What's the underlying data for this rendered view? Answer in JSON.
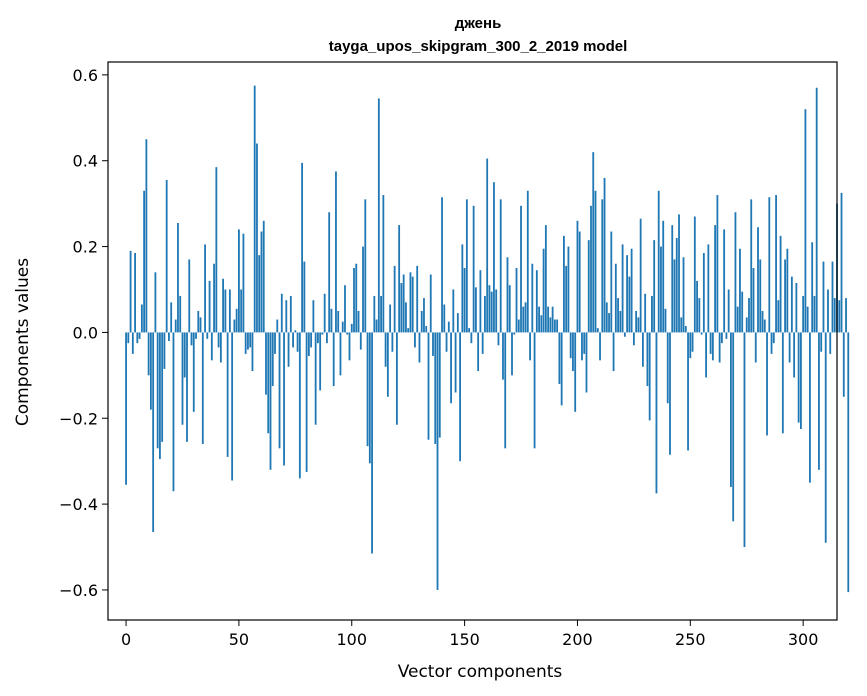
{
  "chart_data": {
    "type": "bar",
    "title_line1": "джень",
    "title_line2": "tayga_upos_skipgram_300_2_2019 model",
    "xlabel": "Vector components",
    "ylabel": "Components values",
    "xlim": [
      -8,
      315
    ],
    "ylim": [
      -0.67,
      0.63
    ],
    "xticks": [
      0,
      50,
      100,
      150,
      200,
      250,
      300
    ],
    "yticks": [
      0.6,
      0.4,
      0.2,
      0.0,
      -0.2,
      -0.4,
      -0.6
    ],
    "xtick_labels": [
      "0",
      "50",
      "100",
      "150",
      "200",
      "250",
      "300"
    ],
    "ytick_labels": [
      "0.6",
      "0.4",
      "0.2",
      "0.0",
      "−0.2",
      "−0.4",
      "−0.6"
    ],
    "bar_color": "#1f77b4",
    "values": [
      -0.355,
      -0.025,
      0.19,
      -0.05,
      0.185,
      -0.025,
      -0.015,
      0.065,
      0.33,
      0.45,
      -0.1,
      -0.18,
      -0.465,
      0.14,
      -0.27,
      -0.295,
      -0.255,
      -0.085,
      0.355,
      -0.02,
      0.07,
      -0.37,
      0.03,
      0.255,
      0.085,
      -0.215,
      -0.105,
      -0.255,
      0.17,
      -0.03,
      -0.185,
      -0.015,
      0.05,
      0.035,
      -0.26,
      0.205,
      -0.015,
      0.12,
      -0.065,
      0.16,
      0.385,
      -0.035,
      -0.07,
      0.125,
      0.1,
      -0.29,
      0.1,
      -0.345,
      0.03,
      0.055,
      0.24,
      0.1,
      0.23,
      -0.05,
      -0.04,
      -0.035,
      -0.09,
      0.575,
      0.44,
      0.18,
      0.235,
      0.26,
      -0.145,
      -0.235,
      -0.32,
      -0.125,
      -0.05,
      0.03,
      -0.27,
      0.09,
      -0.31,
      0.075,
      -0.08,
      0.085,
      -0.035,
      0.005,
      -0.045,
      -0.34,
      0.395,
      0.165,
      -0.325,
      -0.055,
      -0.035,
      0.075,
      -0.215,
      -0.025,
      -0.135,
      -0.005,
      0.09,
      -0.025,
      0.28,
      0.055,
      -0.125,
      0.375,
      0.05,
      -0.1,
      0.025,
      0.11,
      -0.005,
      -0.065,
      0.02,
      0.15,
      0.16,
      0.05,
      -0.04,
      0.2,
      0.31,
      -0.265,
      -0.305,
      -0.515,
      0.085,
      0.03,
      0.545,
      0.085,
      0.32,
      -0.08,
      -0.15,
      0.065,
      -0.045,
      0.155,
      -0.215,
      0.25,
      0.115,
      0.135,
      0.07,
      0.01,
      0.14,
      0.13,
      -0.035,
      0.155,
      -0.07,
      0.05,
      0.08,
      0.015,
      -0.25,
      0.135,
      -0.055,
      -0.26,
      -0.6,
      -0.245,
      0.315,
      0.065,
      -0.045,
      0.025,
      -0.165,
      0.1,
      -0.14,
      0.045,
      -0.3,
      0.205,
      0.15,
      0.31,
      0.01,
      -0.025,
      0.295,
      0.105,
      -0.09,
      0.145,
      -0.05,
      0.085,
      0.405,
      0.11,
      0.095,
      0.35,
      0.1,
      -0.03,
      0.31,
      -0.11,
      -0.27,
      0.175,
      0.11,
      -0.1,
      -0.005,
      0.15,
      0.03,
      0.295,
      0.06,
      0.07,
      0.33,
      -0.065,
      0.16,
      -0.27,
      0.145,
      0.06,
      0.04,
      0.195,
      0.25,
      0.06,
      0.035,
      0.06,
      0.03,
      0.03,
      -0.12,
      -0.17,
      0.225,
      0.155,
      0.2,
      -0.06,
      -0.09,
      -0.185,
      0.26,
      0.235,
      -0.065,
      -0.05,
      -0.14,
      0.215,
      0.295,
      0.42,
      0.33,
      0.01,
      -0.065,
      0.31,
      0.36,
      0.07,
      0.045,
      0.235,
      -0.09,
      0.16,
      0.08,
      0.05,
      0.205,
      -0.01,
      0.18,
      0.13,
      0.195,
      -0.03,
      0.05,
      0.035,
      0.265,
      -0.08,
      0.09,
      -0.125,
      -0.205,
      0.085,
      0.215,
      -0.375,
      0.33,
      0.2,
      0.26,
      0.055,
      -0.165,
      -0.285,
      0.25,
      0.17,
      0.22,
      0.275,
      0.035,
      0.175,
      0.015,
      -0.275,
      -0.06,
      -0.045,
      0.27,
      0.12,
      0.08,
      -0.005,
      0.185,
      -0.105,
      0.205,
      -0.05,
      -0.065,
      0.25,
      0.32,
      -0.07,
      -0.025,
      0.24,
      -0.015,
      0.1,
      -0.36,
      -0.44,
      0.28,
      0.06,
      0.195,
      0.095,
      -0.5,
      0.035,
      0.08,
      0.31,
      0.15,
      -0.07,
      0.245,
      0.17,
      0.05,
      0.03,
      -0.24,
      0.315,
      -0.05,
      -0.025,
      0.32,
      0.075,
      0.225,
      -0.235,
      0.17,
      0.195,
      -0.07,
      0.13,
      -0.105,
      0.115,
      -0.21,
      -0.225,
      0.085,
      0.52,
      0.06,
      -0.35,
      0.21,
      0.085,
      0.57,
      -0.32,
      -0.045,
      0.165,
      -0.49,
      0.1,
      -0.05,
      0.165,
      0.08,
      0.3,
      0.075,
      0.325,
      -0.15,
      0.08,
      -0.605
    ]
  }
}
